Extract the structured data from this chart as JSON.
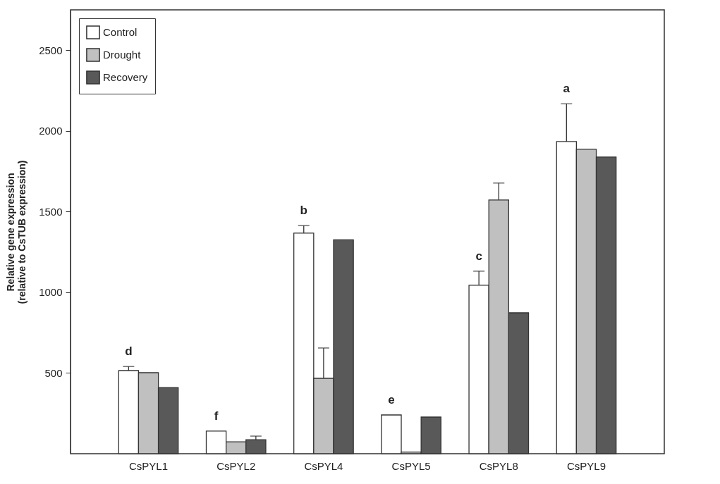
{
  "chart_data": {
    "type": "bar",
    "ylabel": "Relative gene expression\n(relative to CsTUB expression)",
    "categories": [
      "CsPYL1",
      "CsPYL2",
      "CsPYL4",
      "CsPYL5",
      "CsPYL8",
      "CsPYL9"
    ],
    "series": [
      {
        "name": "Control",
        "color": "#ffffff",
        "values": [
          515,
          140,
          1367,
          240,
          1044,
          1934
        ],
        "errors": [
          [
            515,
            540
          ],
          null,
          [
            1367,
            1413
          ],
          null,
          [
            1044,
            1131
          ],
          [
            1934,
            2168
          ]
        ]
      },
      {
        "name": "Drought",
        "color": "#c0c0c0",
        "values": [
          502,
          74,
          467,
          10,
          1572,
          1886
        ],
        "errors": [
          null,
          null,
          [
            467,
            655
          ],
          null,
          [
            1572,
            1677
          ],
          null
        ]
      },
      {
        "name": "Recovery",
        "color": "#595959",
        "values": [
          410,
          87,
          1325,
          227,
          873,
          1838
        ],
        "errors": [
          null,
          [
            87,
            109
          ],
          null,
          null,
          null,
          null
        ]
      }
    ],
    "ylim": [
      0,
      2750
    ],
    "yticks": [
      500,
      1000,
      1500,
      2000,
      2500
    ],
    "grid": false,
    "legend": "top left",
    "annotations": [
      "d",
      "f",
      "b",
      "e",
      "c",
      "a"
    ]
  }
}
